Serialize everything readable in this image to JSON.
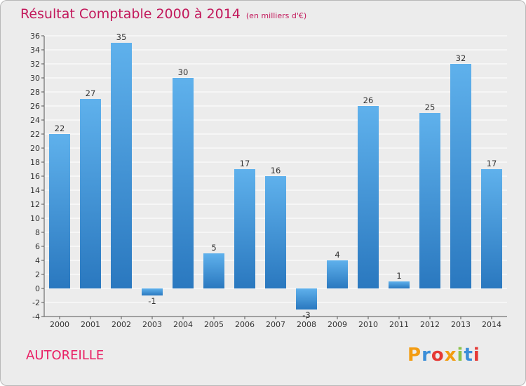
{
  "header": {
    "title": "Résultat Comptable 2000 à 2014",
    "unit": "(en milliers d'€)"
  },
  "footer": {
    "commune": "AUTOREILLE",
    "brand": "Proxiti",
    "brand_colors": [
      "#f39c12",
      "#3b8ed8",
      "#e53935",
      "#f39c12",
      "#8bc34a",
      "#3b8ed8",
      "#e53935"
    ]
  },
  "colors": {
    "bar_top": "#5fb1ec",
    "bar_bottom": "#2a78bf",
    "grid": "#ffffff",
    "title": "#c2185b",
    "commune": "#e91e63"
  },
  "chart_data": {
    "type": "bar",
    "categories": [
      "2000",
      "2001",
      "2002",
      "2003",
      "2004",
      "2005",
      "2006",
      "2007",
      "2008",
      "2009",
      "2010",
      "2011",
      "2012",
      "2013",
      "2014"
    ],
    "values": [
      22,
      27,
      35,
      -1,
      30,
      5,
      17,
      16,
      -3,
      4,
      26,
      1,
      25,
      32,
      17
    ],
    "ylim": [
      -4,
      36
    ],
    "yticks": [
      -4,
      -2,
      0,
      2,
      4,
      6,
      8,
      10,
      12,
      14,
      16,
      18,
      20,
      22,
      24,
      26,
      28,
      30,
      32,
      34,
      36
    ],
    "grid": true
  }
}
